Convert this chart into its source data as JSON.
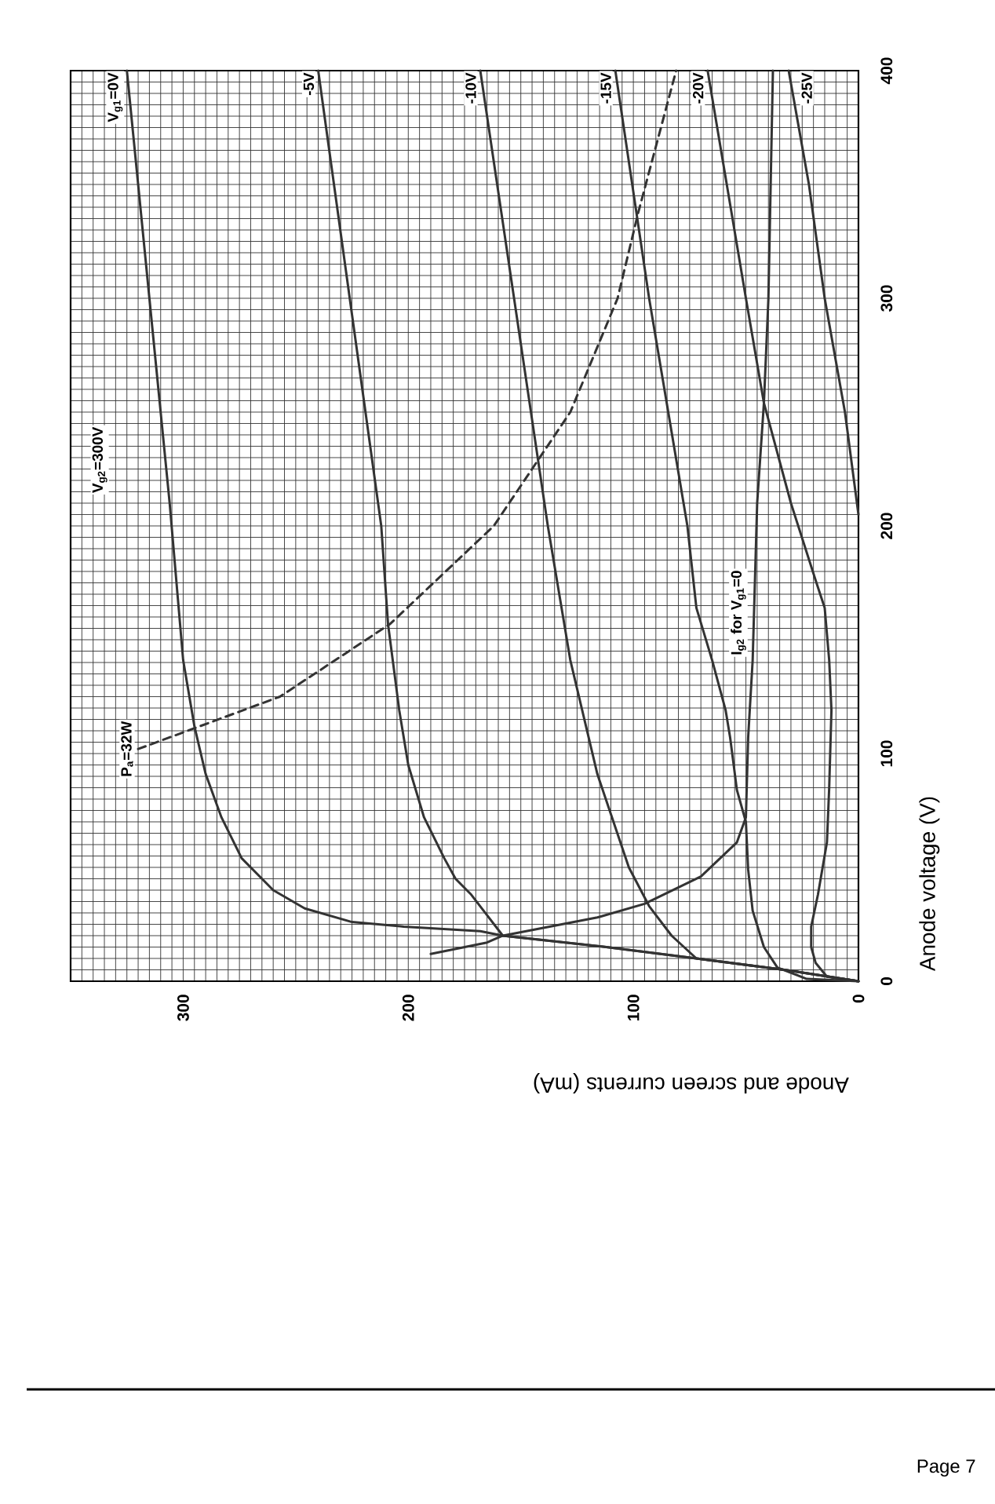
{
  "chart_data": {
    "type": "line",
    "xlabel": "Anode and screen currents (mA)",
    "ylabel": "Anode voltage (V)",
    "xlim": [
      350,
      0
    ],
    "ylim": [
      0,
      400
    ],
    "xticks": [
      0,
      {
        "value": 5,
        "label": null
      },
      {
        "value": 10,
        "label": null
      },
      {
        "value": 15,
        "label": null
      },
      {
        "value": 20,
        "label": null
      },
      {
        "value": 25,
        "label": null
      },
      {
        "value": 30,
        "label": null
      },
      {
        "value": 35,
        "label": null
      },
      {
        "value": 40,
        "label": null
      },
      {
        "value": 45,
        "label": null
      },
      {
        "value": 50,
        "label": null
      },
      {
        "value": 55,
        "label": null
      },
      {
        "value": 60,
        "label": null
      },
      {
        "value": 65,
        "label": null
      },
      {
        "value": 70,
        "label": null
      },
      {
        "value": 75,
        "label": null
      },
      {
        "value": 80,
        "label": null
      },
      {
        "value": 85,
        "label": null
      },
      {
        "value": 90,
        "label": null
      },
      {
        "value": 95,
        "label": null
      },
      100,
      {
        "value": 105,
        "label": null
      },
      {
        "value": 110,
        "label": null
      },
      {
        "value": 115,
        "label": null
      },
      {
        "value": 120,
        "label": null
      },
      {
        "value": 125,
        "label": null
      },
      {
        "value": 130,
        "label": null
      },
      {
        "value": 135,
        "label": null
      },
      {
        "value": 140,
        "label": null
      },
      {
        "value": 145,
        "label": null
      },
      {
        "value": 150,
        "label": null
      },
      {
        "value": 155,
        "label": null
      },
      {
        "value": 160,
        "label": null
      },
      {
        "value": 165,
        "label": null
      },
      {
        "value": 170,
        "label": null
      },
      {
        "value": 175,
        "label": null
      },
      {
        "value": 180,
        "label": null
      },
      {
        "value": 185,
        "label": null
      },
      {
        "value": 190,
        "label": null
      },
      {
        "value": 195,
        "label": null
      },
      200,
      {
        "value": 205,
        "label": null
      },
      {
        "value": 210,
        "label": null
      },
      {
        "value": 215,
        "label": null
      },
      {
        "value": 220,
        "label": null
      },
      {
        "value": 225,
        "label": null
      },
      {
        "value": 230,
        "label": null
      },
      {
        "value": 235,
        "label": null
      },
      {
        "value": 240,
        "label": null
      },
      {
        "value": 245,
        "label": null
      },
      {
        "value": 250,
        "label": null
      },
      {
        "value": 255,
        "label": null
      },
      {
        "value": 260,
        "label": null
      },
      {
        "value": 265,
        "label": null
      },
      {
        "value": 270,
        "label": null
      },
      {
        "value": 275,
        "label": null
      },
      {
        "value": 280,
        "label": null
      },
      {
        "value": 285,
        "label": null
      },
      {
        "value": 290,
        "label": null
      },
      {
        "value": 295,
        "label": null
      },
      300,
      {
        "value": 305,
        "label": null
      },
      {
        "value": 310,
        "label": null
      },
      {
        "value": 315,
        "label": null
      },
      {
        "value": 320,
        "label": null
      },
      {
        "value": 325,
        "label": null
      },
      {
        "value": 330,
        "label": null
      },
      {
        "value": 335,
        "label": null
      },
      {
        "value": 340,
        "label": null
      },
      {
        "value": 345,
        "label": null
      },
      {
        "value": 350,
        "label": null
      }
    ],
    "yticks": [
      0,
      {
        "value": 5,
        "label": null
      },
      {
        "value": 10,
        "label": null
      },
      {
        "value": 15,
        "label": null
      },
      {
        "value": 20,
        "label": null
      },
      {
        "value": 25,
        "label": null
      },
      {
        "value": 30,
        "label": null
      },
      {
        "value": 35,
        "label": null
      },
      {
        "value": 40,
        "label": null
      },
      {
        "value": 45,
        "label": null
      },
      {
        "value": 50,
        "label": null
      },
      {
        "value": 55,
        "label": null
      },
      {
        "value": 60,
        "label": null
      },
      {
        "value": 65,
        "label": null
      },
      {
        "value": 70,
        "label": null
      },
      {
        "value": 75,
        "label": null
      },
      {
        "value": 80,
        "label": null
      },
      {
        "value": 85,
        "label": null
      },
      {
        "value": 90,
        "label": null
      },
      {
        "value": 95,
        "label": null
      },
      100,
      {
        "value": 105,
        "label": null
      },
      {
        "value": 110,
        "label": null
      },
      {
        "value": 115,
        "label": null
      },
      {
        "value": 120,
        "label": null
      },
      {
        "value": 125,
        "label": null
      },
      {
        "value": 130,
        "label": null
      },
      {
        "value": 135,
        "label": null
      },
      {
        "value": 140,
        "label": null
      },
      {
        "value": 145,
        "label": null
      },
      {
        "value": 150,
        "label": null
      },
      {
        "value": 155,
        "label": null
      },
      {
        "value": 160,
        "label": null
      },
      {
        "value": 165,
        "label": null
      },
      {
        "value": 170,
        "label": null
      },
      {
        "value": 175,
        "label": null
      },
      {
        "value": 180,
        "label": null
      },
      {
        "value": 185,
        "label": null
      },
      {
        "value": 190,
        "label": null
      },
      {
        "value": 195,
        "label": null
      },
      200,
      {
        "value": 205,
        "label": null
      },
      {
        "value": 210,
        "label": null
      },
      {
        "value": 215,
        "label": null
      },
      {
        "value": 220,
        "label": null
      },
      {
        "value": 225,
        "label": null
      },
      {
        "value": 230,
        "label": null
      },
      {
        "value": 235,
        "label": null
      },
      {
        "value": 240,
        "label": null
      },
      {
        "value": 245,
        "label": null
      },
      {
        "value": 250,
        "label": null
      },
      {
        "value": 255,
        "label": null
      },
      {
        "value": 260,
        "label": null
      },
      {
        "value": 265,
        "label": null
      },
      {
        "value": 270,
        "label": null
      },
      {
        "value": 275,
        "label": null
      },
      {
        "value": 280,
        "label": null
      },
      {
        "value": 285,
        "label": null
      },
      {
        "value": 290,
        "label": null
      },
      {
        "value": 295,
        "label": null
      },
      300,
      {
        "value": 305,
        "label": null
      },
      {
        "value": 310,
        "label": null
      },
      {
        "value": 315,
        "label": null
      },
      {
        "value": 320,
        "label": null
      },
      {
        "value": 325,
        "label": null
      },
      {
        "value": 330,
        "label": null
      },
      {
        "value": 335,
        "label": null
      },
      {
        "value": 340,
        "label": null
      },
      {
        "value": 345,
        "label": null
      },
      {
        "value": 350,
        "label": null
      },
      {
        "value": 355,
        "label": null
      },
      {
        "value": 360,
        "label": null
      },
      {
        "value": 365,
        "label": null
      },
      {
        "value": 370,
        "label": null
      },
      {
        "value": 375,
        "label": null
      },
      {
        "value": 380,
        "label": null
      },
      {
        "value": 385,
        "label": null
      },
      {
        "value": 390,
        "label": null
      },
      {
        "value": 395,
        "label": null
      },
      400
    ],
    "grid": true,
    "series": [
      {
        "name": "V$_{g1}$=0V",
        "color": "#333333",
        "x": [
          0,
          33,
          72,
          112,
          158,
          168,
          202,
          225,
          246,
          260,
          274,
          283,
          290,
          295,
          300,
          306,
          315,
          325
        ],
        "values": [
          0,
          5,
          10,
          15,
          20,
          22,
          24,
          26,
          32,
          40,
          54,
          72,
          91,
          112,
          141,
          210,
          300,
          400
        ]
      },
      {
        "name": "-5V",
        "color": "#333333",
        "x": [
          0,
          33,
          72,
          112,
          158,
          165,
          172,
          179,
          184,
          193,
          200,
          204,
          209,
          212,
          226,
          240
        ],
        "values": [
          0,
          5,
          10,
          15,
          20,
          29,
          38,
          45,
          54,
          72,
          95,
          119,
          157,
          200,
          300,
          400
        ]
      },
      {
        "name": "-10V",
        "color": "#333333",
        "x": [
          0,
          33,
          72,
          83,
          93,
          102,
          116,
          128,
          138,
          153,
          168
        ],
        "values": [
          0,
          5,
          10,
          20,
          33,
          50,
          91,
          141,
          200,
          300,
          400
        ]
      },
      {
        "name": "-15V",
        "color": "#333333",
        "x": [
          0,
          23,
          36,
          42,
          47,
          49,
          50,
          54,
          57,
          59,
          65,
          72,
          76,
          93,
          108
        ],
        "values": [
          0,
          1,
          6,
          15,
          31,
          49,
          70,
          84,
          107,
          119,
          141,
          164,
          200,
          300,
          400
        ]
      },
      {
        "name": "-20V",
        "color": "#333333",
        "x": [
          0,
          14,
          19,
          21,
          21,
          18,
          14,
          13,
          12,
          13,
          15,
          19,
          30,
          42,
          50,
          67
        ],
        "values": [
          0,
          2,
          8,
          15,
          24,
          38,
          61,
          85,
          119,
          141,
          164,
          176,
          210,
          254,
          300,
          400
        ]
      },
      {
        "name": "-25V",
        "color": "#333333",
        "x": [
          0,
          6,
          15,
          22,
          31
        ],
        "values": [
          205,
          250,
          300,
          350,
          400
        ]
      },
      {
        "name": "I$_{g2}$ for V$_{g1}$=0",
        "color": "#333333",
        "x": [
          190,
          165,
          158,
          116,
          95,
          70,
          54,
          50,
          49,
          47,
          45,
          42,
          40,
          38
        ],
        "values": [
          12,
          17,
          20,
          28,
          34,
          46,
          61,
          72,
          107,
          141,
          210,
          254,
          300,
          400
        ]
      },
      {
        "name": "P$_{a}$=32W",
        "color": "#333333",
        "line_style": "dashed",
        "x": [
          320,
          257,
          208,
          162,
          128,
          107,
          98,
          81
        ],
        "values": [
          102,
          125,
          157,
          200,
          250,
          300,
          337,
          400
        ]
      }
    ],
    "annotations": [
      "V$_{g2}$=300V",
      "Page 7"
    ]
  }
}
